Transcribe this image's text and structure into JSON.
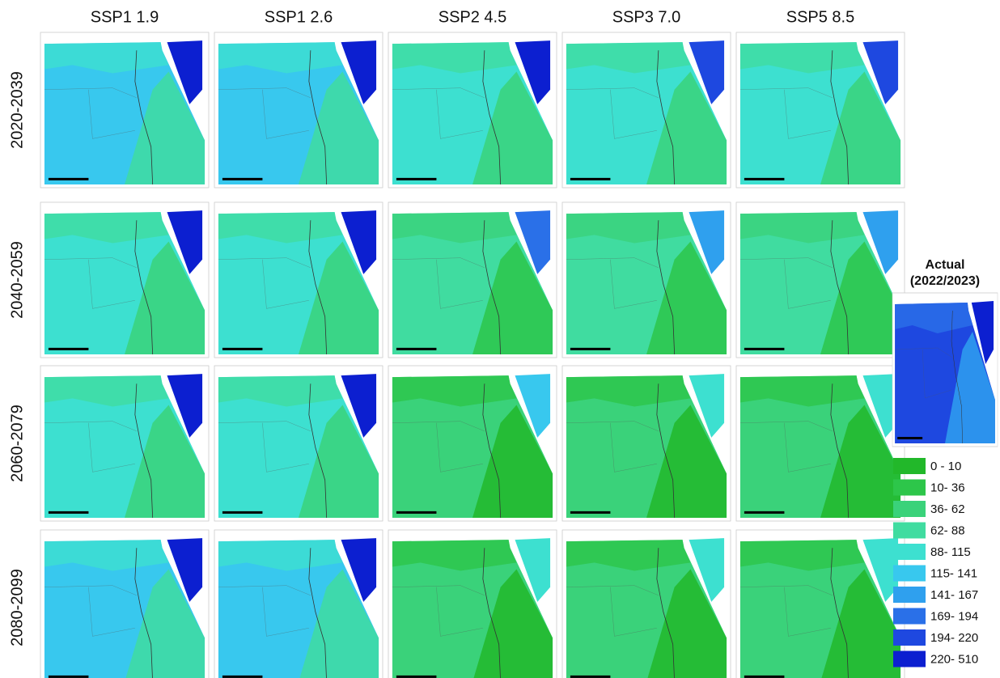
{
  "columns": [
    "SSP1 1.9",
    "SSP1 2.6",
    "SSP2 4.5",
    "SSP3 7.0",
    "SSP5 8.5"
  ],
  "rows": [
    "2020-2039",
    "2040-2059",
    "2060-2079",
    "2080-2099"
  ],
  "actual_title": "Actual",
  "actual_period": "(2022/2023)",
  "legend": [
    {
      "label": "0 - 10",
      "color": "#22b82a"
    },
    {
      "label": "10- 36",
      "color": "#2dc64a"
    },
    {
      "label": "36- 62",
      "color": "#3ad27a"
    },
    {
      "label": "62- 88",
      "color": "#40dca0"
    },
    {
      "label": "88- 115",
      "color": "#3de0d0"
    },
    {
      "label": "115- 141",
      "color": "#38c8ee"
    },
    {
      "label": "141- 167",
      "color": "#2fa0ee"
    },
    {
      "label": "169- 194",
      "color": "#2a70e8"
    },
    {
      "label": "194- 220",
      "color": "#1e48e0"
    },
    {
      "label": "220- 510",
      "color": "#0c1fd0"
    }
  ]
}
